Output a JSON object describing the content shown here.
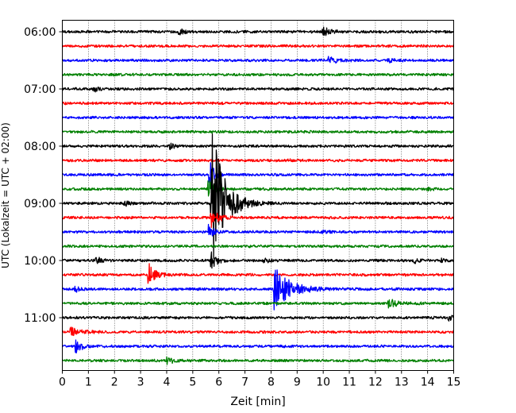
{
  "chart_data": {
    "type": "line",
    "title": "",
    "xlabel": "Zeit  [min]",
    "ylabel": "UTC (Lokalzeit = UTC + 02:00)",
    "xlim": [
      0,
      15
    ],
    "x_ticks": [
      0,
      1,
      2,
      3,
      4,
      5,
      6,
      7,
      8,
      9,
      10,
      11,
      12,
      13,
      14,
      15
    ],
    "x_tick_labels": [
      "0",
      "1",
      "2",
      "3",
      "4",
      "5",
      "6",
      "7",
      "8",
      "9",
      "10",
      "11",
      "12",
      "13",
      "14",
      "15"
    ],
    "grid": "vertical dotted at each minute",
    "y_tick_labels": [
      "06:00",
      "07:00",
      "08:00",
      "09:00",
      "10:00",
      "11:00"
    ],
    "colors": [
      "#000000",
      "#ff0000",
      "#0000ff",
      "#008000"
    ],
    "traces": [
      {
        "start": "06:00",
        "color": "#000000",
        "events": [
          {
            "t": 4.45,
            "amp": 0.25,
            "dur": 0.4
          },
          {
            "t": 10.0,
            "amp": 0.3,
            "dur": 0.6
          }
        ]
      },
      {
        "start": "06:15",
        "color": "#ff0000",
        "events": []
      },
      {
        "start": "06:30",
        "color": "#0000ff",
        "events": [
          {
            "t": 10.2,
            "amp": 0.2,
            "dur": 0.8
          },
          {
            "t": 12.5,
            "amp": 0.15,
            "dur": 0.5
          }
        ]
      },
      {
        "start": "06:45",
        "color": "#008000",
        "events": []
      },
      {
        "start": "07:00",
        "color": "#000000",
        "events": [
          {
            "t": 1.2,
            "amp": 0.2,
            "dur": 0.4
          }
        ]
      },
      {
        "start": "07:15",
        "color": "#ff0000",
        "events": []
      },
      {
        "start": "07:30",
        "color": "#0000ff",
        "events": []
      },
      {
        "start": "07:45",
        "color": "#008000",
        "events": []
      },
      {
        "start": "08:00",
        "color": "#000000",
        "events": [
          {
            "t": 4.1,
            "amp": 0.2,
            "dur": 0.4
          }
        ]
      },
      {
        "start": "08:15",
        "color": "#ff0000",
        "events": [
          {
            "t": 8.5,
            "amp": 0.1,
            "dur": 0.5
          }
        ]
      },
      {
        "start": "08:30",
        "color": "#0000ff",
        "events": [
          {
            "t": 5.65,
            "amp": 1.3,
            "dur": 0.3
          }
        ]
      },
      {
        "start": "08:45",
        "color": "#008000",
        "events": [
          {
            "t": 5.6,
            "amp": 0.8,
            "dur": 0.4
          },
          {
            "t": 14.0,
            "amp": 0.1,
            "dur": 0.3
          }
        ]
      },
      {
        "start": "09:00",
        "color": "#000000",
        "events": [
          {
            "t": 5.72,
            "amp": 5.5,
            "dur": 1.0
          },
          {
            "t": 2.4,
            "amp": 0.2,
            "dur": 0.3
          }
        ]
      },
      {
        "start": "09:15",
        "color": "#ff0000",
        "events": [
          {
            "t": 5.7,
            "amp": 0.8,
            "dur": 0.5
          }
        ]
      },
      {
        "start": "09:30",
        "color": "#0000ff",
        "events": [
          {
            "t": 5.6,
            "amp": 0.5,
            "dur": 0.4
          },
          {
            "t": 10.0,
            "amp": 0.1,
            "dur": 0.4
          }
        ]
      },
      {
        "start": "09:45",
        "color": "#008000",
        "events": []
      },
      {
        "start": "10:00",
        "color": "#000000",
        "events": [
          {
            "t": 5.7,
            "amp": 0.7,
            "dur": 0.4
          },
          {
            "t": 1.3,
            "amp": 0.25,
            "dur": 0.4
          },
          {
            "t": 7.7,
            "amp": 0.2,
            "dur": 0.4
          },
          {
            "t": 13.5,
            "amp": 0.2,
            "dur": 0.3
          },
          {
            "t": 14.5,
            "amp": 0.2,
            "dur": 0.2
          }
        ]
      },
      {
        "start": "10:15",
        "color": "#ff0000",
        "events": [
          {
            "t": 3.3,
            "amp": 0.8,
            "dur": 0.6
          }
        ]
      },
      {
        "start": "10:30",
        "color": "#0000ff",
        "events": [
          {
            "t": 8.1,
            "amp": 1.6,
            "dur": 1.3
          },
          {
            "t": 0.5,
            "amp": 0.2,
            "dur": 0.4
          }
        ]
      },
      {
        "start": "10:45",
        "color": "#008000",
        "events": [
          {
            "t": 12.5,
            "amp": 0.3,
            "dur": 0.8
          }
        ]
      },
      {
        "start": "11:00",
        "color": "#000000",
        "events": [
          {
            "t": 14.8,
            "amp": 0.25,
            "dur": 0.3
          }
        ]
      },
      {
        "start": "11:15",
        "color": "#ff0000",
        "events": [
          {
            "t": 0.3,
            "amp": 0.3,
            "dur": 0.8
          }
        ]
      },
      {
        "start": "11:30",
        "color": "#0000ff",
        "events": [
          {
            "t": 0.5,
            "amp": 0.45,
            "dur": 0.5
          }
        ]
      },
      {
        "start": "11:45",
        "color": "#008000",
        "events": [
          {
            "t": 4.0,
            "amp": 0.25,
            "dur": 0.6
          }
        ]
      }
    ]
  }
}
